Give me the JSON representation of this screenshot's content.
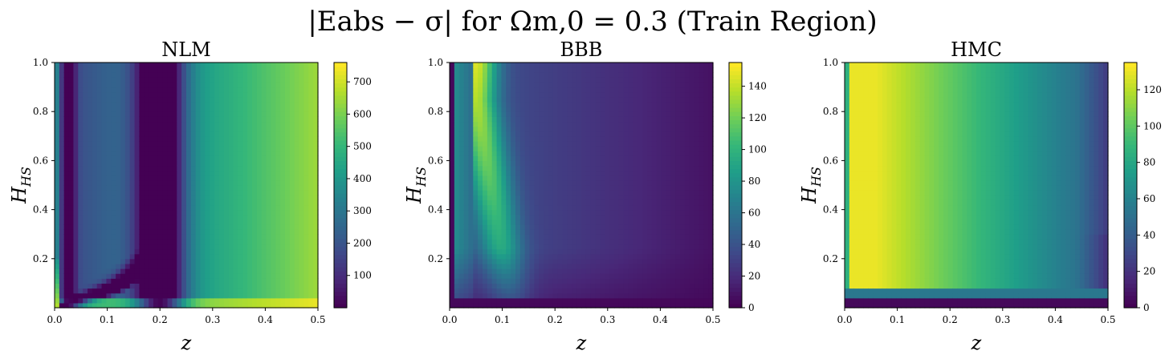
{
  "figure": {
    "suptitle": "|Eabs − σ| for Ωm,0 = 0.3 (Train Region)"
  },
  "chart_data": [
    {
      "type": "heatmap",
      "title": "NLM",
      "xlabel": "z",
      "ylabel": "HHS",
      "xlim": [
        0.0,
        0.5
      ],
      "ylim": [
        0.0,
        1.0
      ],
      "xticks": [
        "0.0",
        "0.1",
        "0.2",
        "0.3",
        "0.4",
        "0.5"
      ],
      "yticks": [
        "0.2",
        "0.4",
        "0.6",
        "0.8",
        "1.0"
      ],
      "colorbar": {
        "min": 0,
        "max": 760,
        "ticks": [
          "100",
          "200",
          "300",
          "400",
          "500",
          "600",
          "700"
        ]
      },
      "colormap": "viridis",
      "feature": "dark curved valley near z≈0.02–0.2 bending to low HHS; bright band at HHS≈0.02 and high values at z≈0.5, low HHS"
    },
    {
      "type": "heatmap",
      "title": "BBB",
      "xlabel": "z",
      "ylabel": "HHS",
      "xlim": [
        0.0,
        0.5
      ],
      "ylim": [
        0.0,
        1.0
      ],
      "xticks": [
        "0.0",
        "0.1",
        "0.2",
        "0.3",
        "0.4",
        "0.5"
      ],
      "yticks": [
        "0.2",
        "0.4",
        "0.6",
        "0.8",
        "1.0"
      ],
      "colorbar": {
        "min": 0,
        "max": 155,
        "ticks": [
          "0",
          "20",
          "40",
          "60",
          "80",
          "100",
          "120",
          "140"
        ]
      },
      "colormap": "viridis",
      "feature": "bright ridge near z≈0.05 at high HHS, fading toward larger z and lower HHS"
    },
    {
      "type": "heatmap",
      "title": "HMC",
      "xlabel": "z",
      "ylabel": "HHS",
      "xlim": [
        0.0,
        0.5
      ],
      "ylim": [
        0.0,
        1.0
      ],
      "xticks": [
        "0.0",
        "0.1",
        "0.2",
        "0.3",
        "0.4",
        "0.5"
      ],
      "yticks": [
        "0.2",
        "0.4",
        "0.6",
        "0.8",
        "1.0"
      ],
      "colorbar": {
        "min": 0,
        "max": 135,
        "ticks": [
          "0",
          "20",
          "40",
          "60",
          "80",
          "100",
          "120"
        ]
      },
      "colormap": "viridis",
      "feature": "bright band z≈0.01–0.06 at all HHS above 0.05, decreasing toward z=0.5; dark strip at lowest HHS"
    }
  ]
}
